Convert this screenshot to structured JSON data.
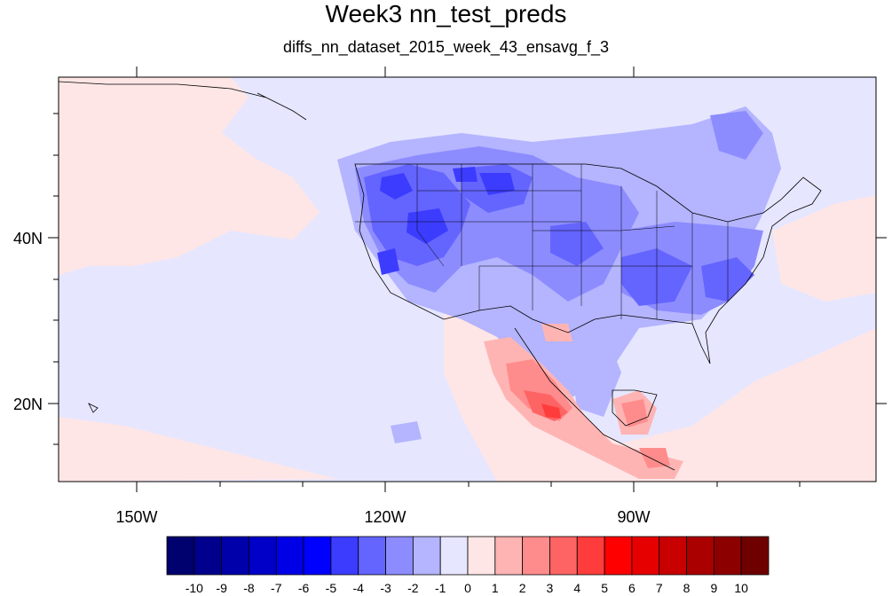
{
  "title": "Week3 nn_test_preds",
  "subtitle": "diffs_nn_dataset_2015_week_43_ensavg_f_3",
  "axes": {
    "lat_labels": [
      "40N",
      "20N"
    ],
    "lon_labels": [
      "150W",
      "120W",
      "90W"
    ]
  },
  "colorbar": {
    "colors": [
      "#00006e",
      "#00008c",
      "#0000aa",
      "#0000c8",
      "#0000e6",
      "#0000ff",
      "#3c3cff",
      "#6464ff",
      "#8c8cff",
      "#b4b4ff",
      "#e6e6ff",
      "#ffe6e6",
      "#ffb4b4",
      "#ff8c8c",
      "#ff6464",
      "#ff3c3c",
      "#ff0000",
      "#e60000",
      "#c80000",
      "#aa0000",
      "#8c0000",
      "#6e0000"
    ],
    "labels": [
      "-10",
      "-9",
      "-8",
      "-7",
      "-6",
      "-5",
      "-4",
      "-3",
      "-2",
      "-1",
      "0",
      "1",
      "2",
      "3",
      "4",
      "5",
      "6",
      "7",
      "8",
      "9",
      "10"
    ]
  },
  "field_colors": {
    "ocean_base": "#e6e6ff",
    "pale_blue": "#b4b4ff",
    "mid_blue": "#8c8cff",
    "blue": "#6464ff",
    "deep_blue": "#3c3cff",
    "pale_red": "#ffe6e6",
    "light_red": "#ffb4b4",
    "mid_red": "#ff8c8c",
    "red": "#ff6464",
    "deep_red": "#ff3c3c"
  }
}
